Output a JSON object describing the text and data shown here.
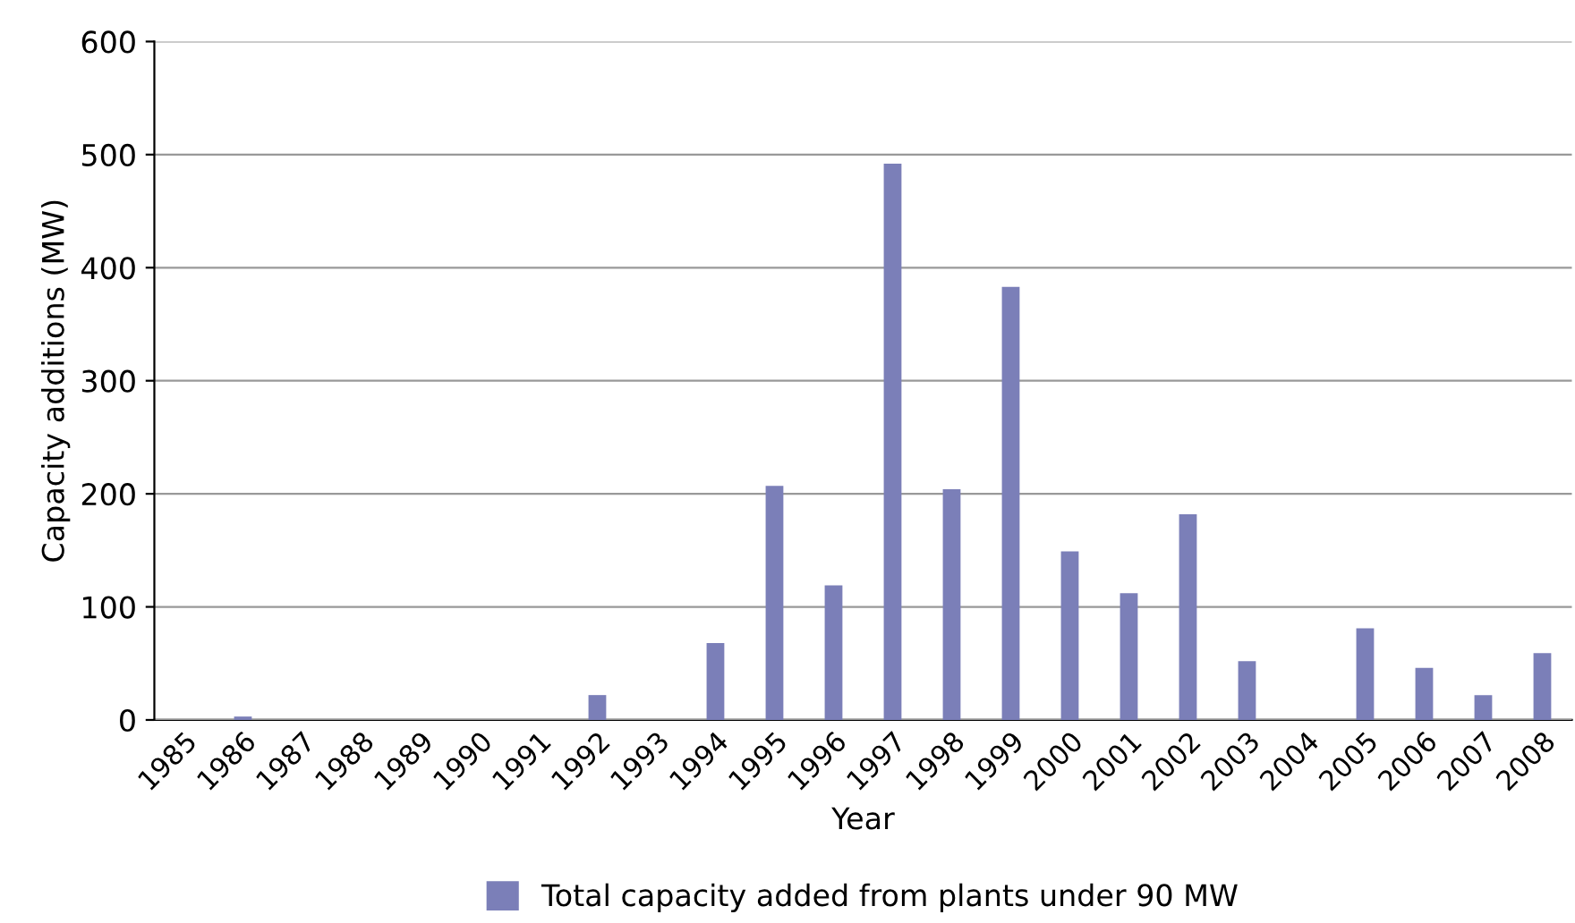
{
  "chart_data": {
    "type": "bar",
    "xlabel": "Year",
    "ylabel": "Capacity additions (MW)",
    "categories": [
      "1985",
      "1986",
      "1987",
      "1988",
      "1989",
      "1990",
      "1991",
      "1992",
      "1993",
      "1994",
      "1995",
      "1996",
      "1997",
      "1998",
      "1999",
      "2000",
      "2001",
      "2002",
      "2003",
      "2004",
      "2005",
      "2006",
      "2007",
      "2008"
    ],
    "series": [
      {
        "name": "Total capacity added from plants under 90 MW",
        "color": "#7b7fb8",
        "values": [
          0,
          3,
          0,
          0,
          0,
          0,
          0,
          22,
          0,
          68,
          207,
          119,
          492,
          204,
          383,
          149,
          112,
          182,
          52,
          0,
          81,
          46,
          22,
          59
        ]
      }
    ],
    "ylim": [
      0,
      600
    ],
    "yticks": [
      0,
      100,
      200,
      300,
      400,
      500,
      600
    ],
    "grid": "y",
    "legend": "bottom"
  }
}
